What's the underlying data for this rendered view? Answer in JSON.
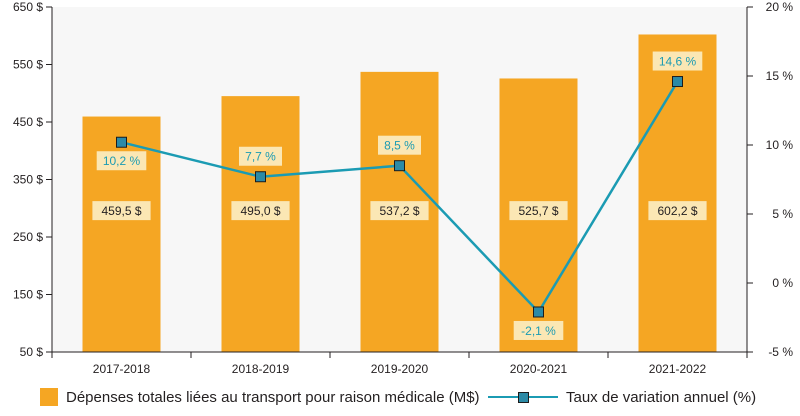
{
  "colors": {
    "bar": "#f5a623",
    "line": "#1b9bb3",
    "marker": "#2c8aa6",
    "label_bg": "#fbe7b4",
    "axis": "#231f20",
    "grid": "#f7f7f7"
  },
  "chart_data": {
    "type": "bar",
    "categories": [
      "2017-2018",
      "2018-2019",
      "2019-2020",
      "2020-2021",
      "2021-2022"
    ],
    "series": [
      {
        "name": "Dépenses totales liées au transport pour raison médicale (M$)",
        "type": "bar",
        "axis": "left",
        "values": [
          459.5,
          495.0,
          537.2,
          525.7,
          602.2
        ],
        "labels": [
          "459,5 $",
          "495,0 $",
          "537,2 $",
          "525,7 $",
          "602,2 $"
        ]
      },
      {
        "name": "Taux de variation annuel (%)",
        "type": "line",
        "axis": "right",
        "values": [
          10.2,
          7.7,
          8.5,
          -2.1,
          14.6
        ],
        "labels": [
          "10,2 %",
          "7,7 %",
          "8,5 %",
          "-2,1 %",
          "14,6 %"
        ]
      }
    ],
    "y_left": {
      "ylim": [
        50,
        650
      ],
      "ticks": [
        50,
        150,
        250,
        350,
        450,
        550,
        650
      ],
      "tick_labels": [
        "50 $",
        "150 $",
        "250 $",
        "350 $",
        "450 $",
        "550 $",
        "650 $"
      ]
    },
    "y_right": {
      "ylim": [
        -5,
        20
      ],
      "ticks": [
        -5,
        0,
        5,
        10,
        15,
        20
      ],
      "tick_labels": [
        "-5 %",
        "0 %",
        "5 %",
        "10 %",
        "15 %",
        "20 %"
      ]
    },
    "legend_position": "bottom",
    "grid": false
  }
}
